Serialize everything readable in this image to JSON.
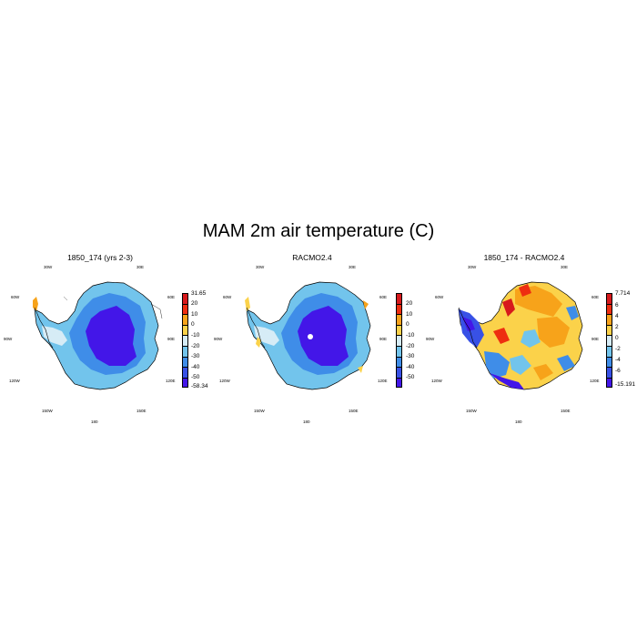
{
  "title": "MAM 2m air temperature (C)",
  "panels": [
    {
      "title": "1850_174 (yrs 2-3)",
      "lon_labels": [
        "30W",
        "30E",
        "60W",
        "60E",
        "90W",
        "90E",
        "120W",
        "120E",
        "150W",
        "150E",
        "180"
      ],
      "colorbar": {
        "labels": [
          "31.65",
          "20",
          "10",
          "0",
          "-10",
          "-20",
          "-30",
          "-40",
          "-50",
          "-58.34"
        ],
        "colors": [
          "#d7191c",
          "#ee2e10",
          "#f7a31a",
          "#fbd24a",
          "#d6ecf6",
          "#72c4ec",
          "#3f8de8",
          "#3851e6",
          "#4316e8"
        ]
      }
    },
    {
      "title": "RACMO2.4",
      "lon_labels": [
        "30W",
        "30E",
        "60W",
        "60E",
        "90W",
        "90E",
        "120W",
        "120E",
        "150W",
        "150E",
        "180"
      ],
      "colorbar": {
        "labels": [
          "20",
          "10",
          "0",
          "-10",
          "-20",
          "-30",
          "-40",
          "-50"
        ],
        "colors": [
          "#d7191c",
          "#ee2e10",
          "#f7a31a",
          "#fbd24a",
          "#d6ecf6",
          "#72c4ec",
          "#3f8de8",
          "#3851e6",
          "#4316e8"
        ]
      }
    },
    {
      "title": "1850_174 - RACMO2.4",
      "lon_labels": [
        "30W",
        "30E",
        "60W",
        "60E",
        "90W",
        "90E",
        "120W",
        "120E",
        "150W",
        "150E",
        "180"
      ],
      "colorbar": {
        "labels": [
          "7.714",
          "6",
          "4",
          "2",
          "0",
          "-2",
          "-4",
          "-6",
          "-15.191"
        ],
        "colors": [
          "#d7191c",
          "#ee2e10",
          "#f7a31a",
          "#fbd24a",
          "#d6ecf6",
          "#72c4ec",
          "#3f8de8",
          "#3851e6",
          "#4316e8"
        ]
      }
    }
  ]
}
